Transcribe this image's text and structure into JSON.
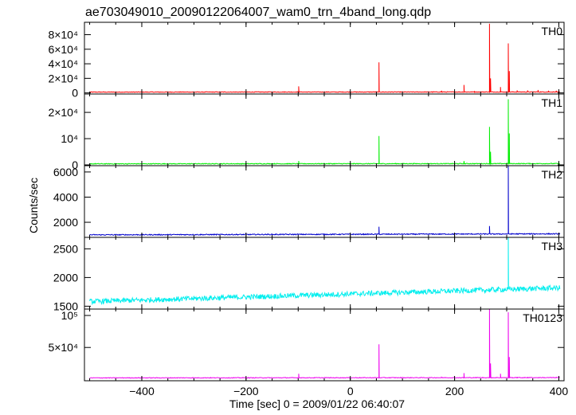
{
  "title": "ae703049010_20090122064007_wam0_trn_4band_long.qdp",
  "xlabel": "Time [sec] 0 = 2009/01/22 06:40:07",
  "ylabel": "Counts/sec",
  "colors": {
    "TH0": "#ff0000",
    "TH1": "#00ee00",
    "TH2": "#0000cc",
    "TH3": "#00eeee",
    "TH0123": "#ee00ee"
  },
  "chart_data": {
    "type": "line",
    "x_range": [
      -510,
      410
    ],
    "x_ticks": [
      -400,
      -200,
      0,
      200,
      400
    ],
    "x_tick_labels": [
      "−400",
      "−200",
      "0",
      "200",
      "400"
    ],
    "panels": [
      {
        "name": "TH0",
        "color": "#ff0000",
        "ylim": [
          -1500,
          97000
        ],
        "y_ticks": [
          0,
          20000,
          40000,
          60000,
          80000
        ],
        "y_tick_labels": [
          "0",
          "2×10⁴",
          "4×10⁴",
          "6×10⁴",
          "8×10⁴"
        ],
        "x_start": -500,
        "x_end": 402,
        "baseline": 1100,
        "noise": 400,
        "drift": 200,
        "spikes": [
          [
            -99,
            9000
          ],
          [
            55,
            42000
          ],
          [
            175,
            3000
          ],
          [
            218,
            11000
          ],
          [
            238,
            2500
          ],
          [
            267,
            95000
          ],
          [
            269,
            20000
          ],
          [
            288,
            8000
          ],
          [
            303,
            68000
          ],
          [
            305,
            30000
          ],
          [
            320,
            3500
          ],
          [
            340,
            3500
          ],
          [
            360,
            4000
          ],
          [
            380,
            3000
          ],
          [
            395,
            3000
          ]
        ]
      },
      {
        "name": "TH1",
        "color": "#00ee00",
        "ylim": [
          -300,
          27000
        ],
        "y_ticks": [
          0,
          10000,
          20000
        ],
        "y_tick_labels": [
          "0",
          "10⁴",
          "2×10⁴"
        ],
        "x_start": -500,
        "x_end": 402,
        "baseline": 400,
        "noise": 150,
        "drift": 100,
        "spikes": [
          [
            -99,
            1500
          ],
          [
            55,
            11000
          ],
          [
            218,
            1500
          ],
          [
            267,
            14500
          ],
          [
            269,
            5000
          ],
          [
            303,
            25000
          ],
          [
            305,
            12000
          ]
        ]
      },
      {
        "name": "TH2",
        "color": "#0000cc",
        "ylim": [
          800,
          6500
        ],
        "y_ticks": [
          2000,
          4000,
          6000
        ],
        "y_tick_labels": [
          "2000",
          "4000",
          "6000"
        ],
        "x_start": -500,
        "x_end": 402,
        "baseline": 1000,
        "noise": 40,
        "drift": 80,
        "spikes": [
          [
            55,
            1650
          ],
          [
            267,
            1700
          ],
          [
            303,
            6500
          ]
        ]
      },
      {
        "name": "TH3",
        "color": "#00eeee",
        "ylim": [
          1450,
          2700
        ],
        "y_ticks": [
          1500,
          2000,
          2500
        ],
        "y_tick_labels": [
          "1500",
          "2000",
          "2500"
        ],
        "x_start": -500,
        "x_end": 402,
        "baseline": 1580,
        "noise": 45,
        "drift": 240,
        "spikes": [
          [
            303,
            2700
          ]
        ]
      },
      {
        "name": "TH0123",
        "color": "#ee00ee",
        "ylim": [
          -2000,
          110000
        ],
        "y_ticks": [
          50000,
          100000
        ],
        "y_tick_labels": [
          "5×10⁴",
          "10⁵"
        ],
        "x_start": -500,
        "x_end": 402,
        "baseline": 2500,
        "noise": 500,
        "drift": 400,
        "spikes": [
          [
            -99,
            9000
          ],
          [
            55,
            55000
          ],
          [
            175,
            3500
          ],
          [
            218,
            10000
          ],
          [
            267,
            110000
          ],
          [
            269,
            25000
          ],
          [
            288,
            9000
          ],
          [
            303,
            105000
          ],
          [
            305,
            35000
          ],
          [
            320,
            4000
          ],
          [
            340,
            4000
          ],
          [
            395,
            3500
          ]
        ]
      }
    ]
  }
}
